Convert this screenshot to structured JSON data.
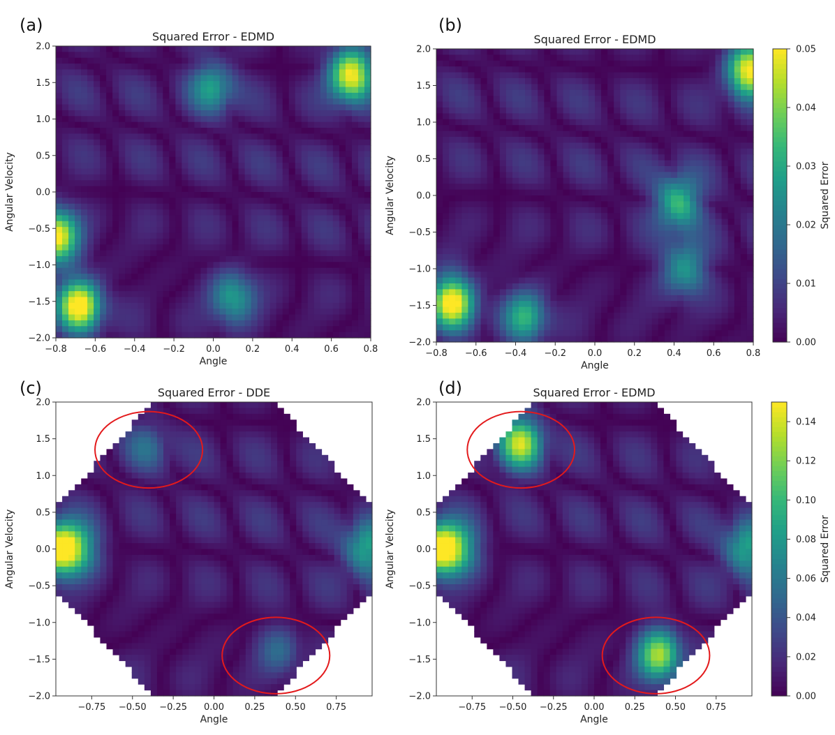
{
  "colormap": [
    "#440154",
    "#482878",
    "#3e4989",
    "#31688e",
    "#26828e",
    "#1f9e89",
    "#35b779",
    "#6ece58",
    "#b5de2b",
    "#fde725"
  ],
  "highlight_color": "#e31a1c",
  "chart_data": [
    {
      "panel": "(a)",
      "type": "heatmap",
      "title": "Squared Error - EDMD",
      "xlabel": "Angle",
      "ylabel": "Angular Velocity",
      "xlim": [
        -0.8,
        0.8
      ],
      "ylim": [
        -2.0,
        2.0
      ],
      "xticks": [
        -0.8,
        -0.6,
        -0.4,
        -0.2,
        0.0,
        0.2,
        0.4,
        0.6,
        0.8
      ],
      "xtick_labels": [
        "−0.8",
        "−0.6",
        "−0.4",
        "−0.2",
        "0.0",
        "0.2",
        "0.4",
        "0.6",
        "0.8"
      ],
      "yticks": [
        2.0,
        1.5,
        1.0,
        0.5,
        0.0,
        -0.5,
        -1.0,
        -1.5,
        -2.0
      ],
      "ytick_labels": [
        "2.0",
        "1.5",
        "1.0",
        "0.5",
        "0.0",
        "−0.5",
        "−1.0",
        "−1.5",
        "−2.0"
      ],
      "grid": false,
      "domain": "rectangle",
      "vmin": 0.0,
      "vmax": 0.05,
      "hotspots": [
        {
          "x": -0.68,
          "y": -1.55,
          "value": 0.05
        },
        {
          "x": 0.7,
          "y": 1.6,
          "value": 0.05
        },
        {
          "x": -0.8,
          "y": -0.6,
          "value": 0.05
        },
        {
          "x": 0.1,
          "y": -1.45,
          "value": 0.026
        },
        {
          "x": 0.0,
          "y": 1.45,
          "value": 0.024
        }
      ],
      "annotations": []
    },
    {
      "panel": "(b)",
      "type": "heatmap",
      "title": "Squared Error - EDMD",
      "xlabel": "Angle",
      "ylabel": "Angular Velocity",
      "xlim": [
        -0.8,
        0.8
      ],
      "ylim": [
        -2.0,
        2.0
      ],
      "xticks": [
        -0.8,
        -0.6,
        -0.4,
        -0.2,
        0.0,
        0.2,
        0.4,
        0.6,
        0.8
      ],
      "xtick_labels": [
        "−0.8",
        "−0.6",
        "−0.4",
        "−0.2",
        "0.0",
        "0.2",
        "0.4",
        "0.6",
        "0.8"
      ],
      "yticks": [
        2.0,
        1.5,
        1.0,
        0.5,
        0.0,
        -0.5,
        -1.0,
        -1.5,
        -2.0
      ],
      "ytick_labels": [
        "2.0",
        "1.5",
        "1.0",
        "0.5",
        "0.0",
        "−0.5",
        "−1.0",
        "−1.5",
        "−2.0"
      ],
      "grid": false,
      "domain": "rectangle",
      "vmin": 0.0,
      "vmax": 0.05,
      "hotspots": [
        {
          "x": -0.72,
          "y": -1.45,
          "value": 0.05
        },
        {
          "x": 0.78,
          "y": 1.7,
          "value": 0.05
        },
        {
          "x": 0.42,
          "y": -0.1,
          "value": 0.032
        },
        {
          "x": -0.35,
          "y": -1.65,
          "value": 0.028
        },
        {
          "x": 0.45,
          "y": -1.0,
          "value": 0.026
        }
      ],
      "colorbar": {
        "label": "Squared Error",
        "ticks": [
          0.0,
          0.01,
          0.02,
          0.03,
          0.04,
          0.05
        ],
        "tick_labels": [
          "0.00",
          "0.01",
          "0.02",
          "0.03",
          "0.04",
          "0.05"
        ]
      },
      "annotations": []
    },
    {
      "panel": "(c)",
      "type": "heatmap",
      "title": "Squared Error - DDE",
      "xlabel": "Angle",
      "ylabel": "Angular Velocity",
      "xlim": [
        -0.97,
        0.97
      ],
      "ylim": [
        -2.0,
        2.0
      ],
      "xticks": [
        -0.75,
        -0.5,
        -0.25,
        0.0,
        0.25,
        0.5,
        0.75
      ],
      "xtick_labels": [
        "−0.75",
        "−0.50",
        "−0.25",
        "0.00",
        "0.25",
        "0.50",
        "0.75"
      ],
      "yticks": [
        2.0,
        1.5,
        1.0,
        0.5,
        0.0,
        -0.5,
        -1.0,
        -1.5,
        -2.0
      ],
      "ytick_labels": [
        "2.0",
        "1.5",
        "1.0",
        "0.5",
        "0.0",
        "−0.5",
        "−1.0",
        "−1.5",
        "−2.0"
      ],
      "grid": false,
      "domain": "octagon",
      "vmin": 0.0,
      "vmax": 0.15,
      "hotspots": [
        {
          "x": -0.95,
          "y": 0.0,
          "value": 0.15
        },
        {
          "x": 0.93,
          "y": 0.0,
          "value": 0.08
        },
        {
          "x": -0.82,
          "y": 0.0,
          "value": 0.06
        },
        {
          "x": 0.4,
          "y": -1.4,
          "value": 0.04
        },
        {
          "x": -0.4,
          "y": 1.4,
          "value": 0.035
        }
      ],
      "annotations": [
        {
          "shape": "ellipse",
          "cx": -0.4,
          "cy": 1.35,
          "rx": 0.33,
          "ry": 0.52
        },
        {
          "shape": "ellipse",
          "cx": 0.38,
          "cy": -1.45,
          "rx": 0.33,
          "ry": 0.52
        }
      ]
    },
    {
      "panel": "(d)",
      "type": "heatmap",
      "title": "Squared Error - EDMD",
      "xlabel": "Angle",
      "ylabel": "Angular Velocity",
      "xlim": [
        -0.97,
        0.97
      ],
      "ylim": [
        -2.0,
        2.0
      ],
      "xticks": [
        -0.75,
        -0.5,
        -0.25,
        0.0,
        0.25,
        0.5,
        0.75
      ],
      "xtick_labels": [
        "−0.75",
        "−0.50",
        "−0.25",
        "0.00",
        "0.25",
        "0.50",
        "0.75"
      ],
      "yticks": [
        2.0,
        1.5,
        1.0,
        0.5,
        0.0,
        -0.5,
        -1.0,
        -1.5,
        -2.0
      ],
      "ytick_labels": [
        "2.0",
        "1.5",
        "1.0",
        "0.5",
        "0.0",
        "−0.5",
        "−1.0",
        "−1.5",
        "−2.0"
      ],
      "grid": false,
      "domain": "octagon",
      "vmin": 0.0,
      "vmax": 0.15,
      "hotspots": [
        {
          "x": -0.95,
          "y": 0.0,
          "value": 0.15
        },
        {
          "x": 0.93,
          "y": 0.0,
          "value": 0.08
        },
        {
          "x": -0.45,
          "y": 1.45,
          "value": 0.12
        },
        {
          "x": 0.4,
          "y": -1.45,
          "value": 0.12
        },
        {
          "x": -0.82,
          "y": 0.0,
          "value": 0.06
        }
      ],
      "colorbar": {
        "label": "Squared Error",
        "ticks": [
          0.0,
          0.02,
          0.04,
          0.06,
          0.08,
          0.1,
          0.12,
          0.14
        ],
        "tick_labels": [
          "0.00",
          "0.02",
          "0.04",
          "0.06",
          "0.08",
          "0.10",
          "0.12",
          "0.14"
        ]
      },
      "annotations": [
        {
          "shape": "ellipse",
          "cx": -0.45,
          "cy": 1.35,
          "rx": 0.33,
          "ry": 0.52
        },
        {
          "shape": "ellipse",
          "cx": 0.38,
          "cy": -1.45,
          "rx": 0.33,
          "ry": 0.52
        }
      ]
    }
  ]
}
